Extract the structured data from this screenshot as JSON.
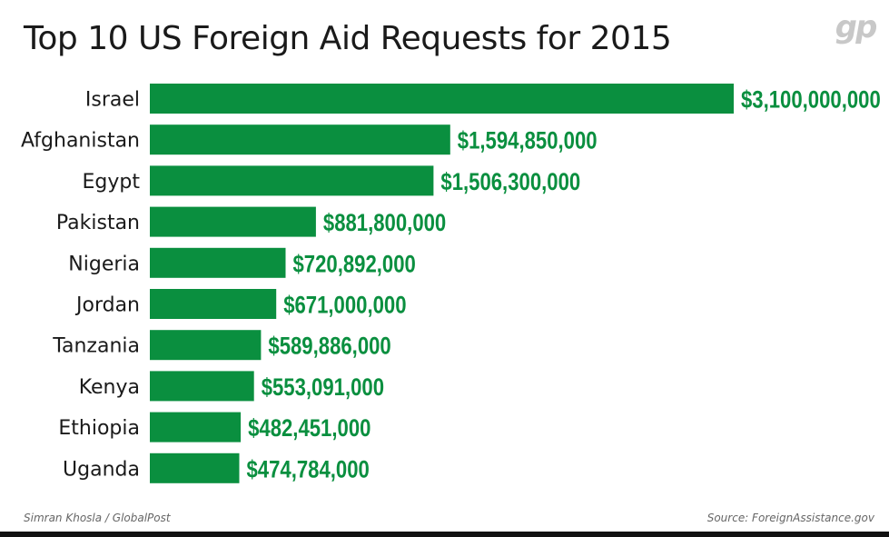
{
  "logo_text": "gp",
  "colors": {
    "bar": "#0a8f3f",
    "value_label": "#0a8f3f",
    "category_label": "#1a1a1a",
    "background": "#ffffff"
  },
  "footer": {
    "credit": "Simran Khosla / GlobalPost",
    "source": "Source: ForeignAssistance.gov"
  },
  "chart_data": {
    "type": "bar",
    "orientation": "horizontal",
    "title": "Top 10 US Foreign Aid Requests for 2015",
    "categories": [
      "Israel",
      "Afghanistan",
      "Egypt",
      "Pakistan",
      "Nigeria",
      "Jordan",
      "Tanzania",
      "Kenya",
      "Ethiopia",
      "Uganda"
    ],
    "values": [
      3100000000,
      1594850000,
      1506300000,
      881800000,
      720892000,
      671000000,
      589886000,
      553091000,
      482451000,
      474784000
    ],
    "value_labels": [
      "$3,100,000,000",
      "$1,594,850,000",
      "$1,506,300,000",
      "$881,800,000",
      "$720,892,000",
      "$671,000,000",
      "$589,886,000",
      "$553,091,000",
      "$482,451,000",
      "$474,784,000"
    ],
    "xlim": [
      0,
      3100000000
    ],
    "grid": false,
    "legend": "none"
  }
}
